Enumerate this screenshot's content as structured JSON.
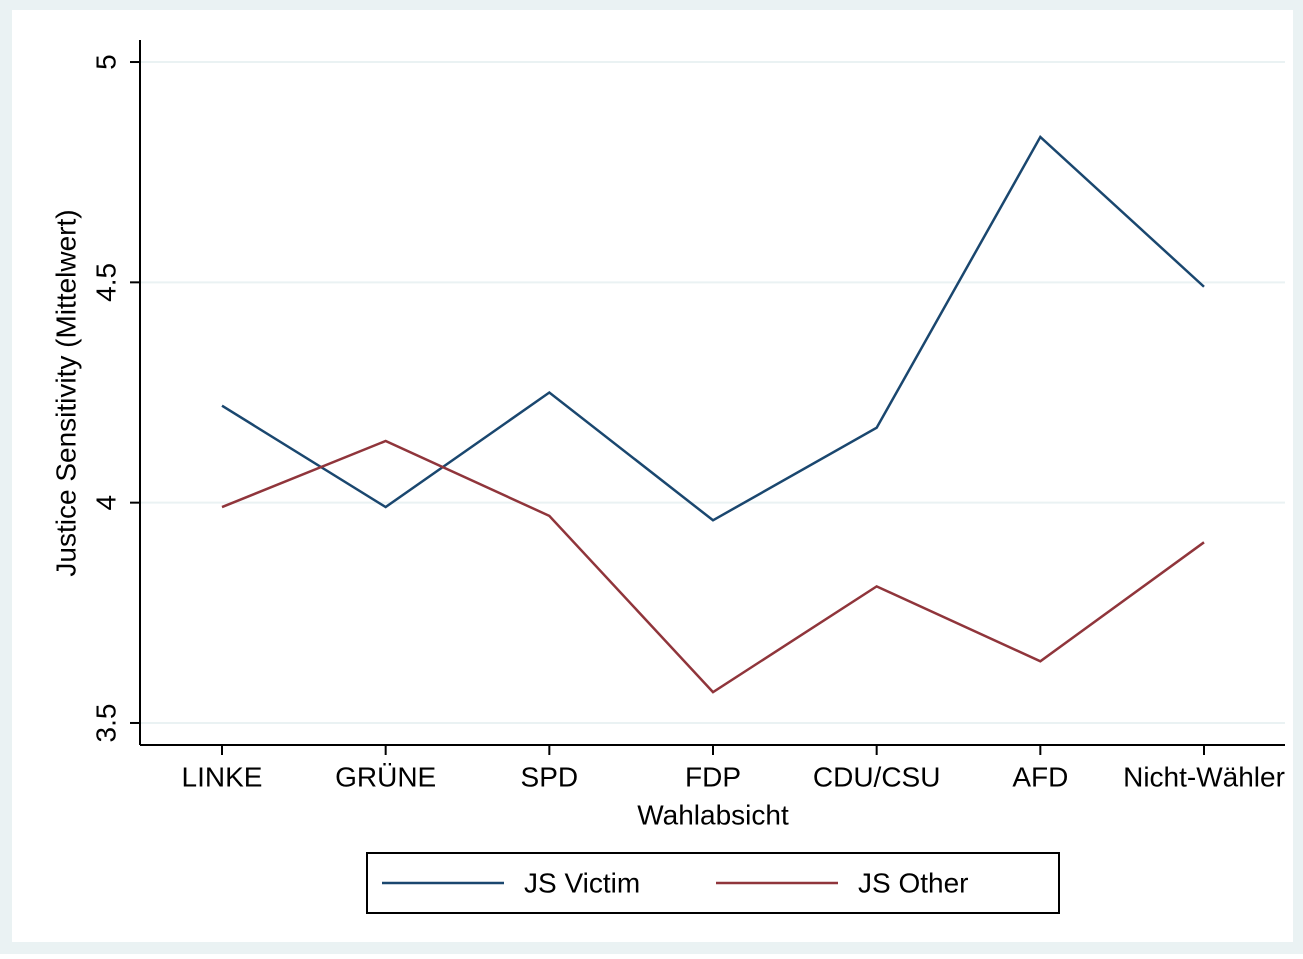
{
  "chart_data": {
    "type": "line",
    "x_label": "Wahlabsicht",
    "y_label": "Justice Sensitivity (Mittelwert)",
    "categories": [
      "LINKE",
      "GRÜNE",
      "SPD",
      "FDP",
      "CDU/CSU",
      "AFD",
      "Nicht-Wähler"
    ],
    "series": [
      {
        "name": "JS Victim",
        "color": "#1a476f",
        "values": [
          4.22,
          3.99,
          4.25,
          3.96,
          4.17,
          4.83,
          4.49
        ]
      },
      {
        "name": "JS Other",
        "color": "#90353b",
        "values": [
          3.99,
          4.14,
          3.97,
          3.57,
          3.81,
          3.64,
          3.91
        ]
      }
    ],
    "ylim": [
      3.45,
      5.05
    ],
    "yticks": [
      3.5,
      4,
      4.5,
      5
    ],
    "grid": true,
    "legend": "bottom"
  }
}
